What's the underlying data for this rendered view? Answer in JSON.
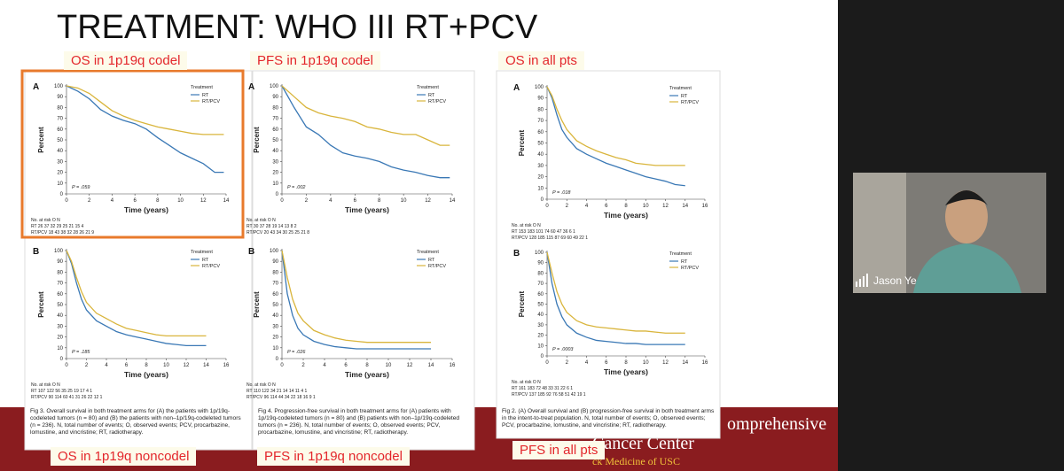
{
  "slide": {
    "title": "TREATMENT: WHO III RT+PCV",
    "labels": [
      "OS in 1p19q codel",
      "PFS in 1p19q codel",
      "OS in all pts",
      "OS in 1p19q noncodel",
      "PFS in 1p19q noncodel",
      "PFS in all pts"
    ],
    "captions": [
      "Fig 3. Overall survival in both treatment arms for (A) the patients with 1p/19q-codeleted tumors (n = 80) and (B) the patients with non–1p/19q-codeleted tumors (n = 236). N, total number of events; O, observed events; PCV, procarbazine, lomustine, and vincristine; RT, radiotherapy.",
      "Fig 4. Progression-free survival in both treatment arms for (A) patients with 1p/19q-codeleted tumors (n = 80) and (B) patients with non–1p/19q-codeleted tumors (n = 236). N, total number of events; O, observed events; PCV, procarbazine, lomustine, and vincristine; RT, radiotherapy.",
      "Fig 2. (A) Overall survival and (B) progression-free survival in both treatment arms in the intent-to-treat population. N, total number of events; O, observed events; PCV, procarbazine, lomustine, and vincristine; RT, radiotherapy."
    ],
    "footer": [
      "omprehensive",
      "Cancer Center",
      "ck Medicine of USC"
    ]
  },
  "video": {
    "participant": "Jason Ye"
  },
  "chart_data": [
    {
      "type": "line",
      "panel": "A",
      "ylabel": "Percent",
      "xlabel": "Time (years)",
      "legend_title": "Treatment",
      "x": [
        0,
        1,
        2,
        3,
        4,
        5,
        6,
        7,
        8,
        9,
        10,
        11,
        12,
        13,
        13.8
      ],
      "xlim": [
        0,
        14
      ],
      "xticks": [
        0,
        2,
        4,
        6,
        8,
        10,
        12,
        14
      ],
      "ylim": [
        0,
        100
      ],
      "yticks": [
        0,
        10,
        20,
        30,
        40,
        50,
        60,
        70,
        80,
        90,
        100
      ],
      "series": [
        {
          "name": "RT",
          "color": "#3a78b5",
          "values": [
            100,
            95,
            88,
            78,
            72,
            68,
            65,
            60,
            52,
            45,
            38,
            33,
            28,
            20,
            20
          ]
        },
        {
          "name": "RT/PCV",
          "color": "#d9b53c",
          "values": [
            100,
            98,
            93,
            85,
            77,
            72,
            68,
            65,
            62,
            60,
            58,
            56,
            55,
            55,
            55
          ]
        }
      ],
      "annotation": "P = .059",
      "risk_table": {
        "header": "No. at risk   O   N",
        "rows": [
          "RT   26  37    32    29    25    21    15    4",
          "RT/PCV  18  43    38    32    28    26    21    9"
        ]
      }
    },
    {
      "type": "line",
      "panel": "A",
      "ylabel": "Percent",
      "xlabel": "Time (years)",
      "legend_title": "Treatment",
      "x": [
        0,
        1,
        2,
        3,
        4,
        5,
        6,
        7,
        8,
        9,
        10,
        11,
        12,
        13,
        13.8
      ],
      "xlim": [
        0,
        14
      ],
      "xticks": [
        0,
        2,
        4,
        6,
        8,
        10,
        12,
        14
      ],
      "ylim": [
        0,
        100
      ],
      "yticks": [
        0,
        10,
        20,
        30,
        40,
        50,
        60,
        70,
        80,
        90,
        100
      ],
      "series": [
        {
          "name": "RT",
          "color": "#3a78b5",
          "values": [
            100,
            80,
            62,
            55,
            45,
            38,
            35,
            33,
            30,
            25,
            22,
            20,
            17,
            15,
            15
          ]
        },
        {
          "name": "RT/PCV",
          "color": "#d9b53c",
          "values": [
            100,
            90,
            80,
            75,
            72,
            70,
            67,
            62,
            60,
            57,
            55,
            55,
            50,
            45,
            45
          ]
        }
      ],
      "annotation": "P = .002",
      "risk_table": {
        "header": "No. at risk   O   N",
        "rows": [
          "RT   30  37    28    19    14    13    8    2",
          "RT/PCV  20  43    34    30    25    25    21    8"
        ]
      }
    },
    {
      "type": "line",
      "panel": "A",
      "ylabel": "Percent",
      "xlabel": "Time (years)",
      "legend_title": "Treatment",
      "x": [
        0,
        0.5,
        1,
        1.5,
        2,
        3,
        4,
        5,
        6,
        7,
        8,
        9,
        10,
        11,
        12,
        13,
        14
      ],
      "xlim": [
        0,
        16
      ],
      "xticks": [
        0,
        2,
        4,
        6,
        8,
        10,
        12,
        14,
        16
      ],
      "ylim": [
        0,
        100
      ],
      "yticks": [
        0,
        10,
        20,
        30,
        40,
        50,
        60,
        70,
        80,
        90,
        100
      ],
      "series": [
        {
          "name": "RT",
          "color": "#3a78b5",
          "values": [
            100,
            90,
            75,
            62,
            55,
            45,
            40,
            36,
            32,
            29,
            26,
            23,
            20,
            18,
            16,
            13,
            12
          ]
        },
        {
          "name": "RT/PCV",
          "color": "#d9b53c",
          "values": [
            100,
            92,
            80,
            70,
            62,
            52,
            47,
            43,
            40,
            37,
            35,
            32,
            31,
            30,
            30,
            30,
            30
          ]
        }
      ],
      "annotation": "P = .018",
      "risk_table": {
        "header": "No. at risk   O   N",
        "rows": [
          "RT   153 183   101   74   60   47   36   6   1",
          "RT/PCV 128 185   115   87   69   60   49   22   1"
        ]
      }
    },
    {
      "type": "line",
      "panel": "B",
      "ylabel": "Percent",
      "xlabel": "Time (years)",
      "legend_title": "Treatment",
      "x": [
        0,
        0.5,
        1,
        1.5,
        2,
        3,
        4,
        5,
        6,
        7,
        8,
        9,
        10,
        11,
        12,
        13,
        14
      ],
      "xlim": [
        0,
        16
      ],
      "xticks": [
        0,
        2,
        4,
        6,
        8,
        10,
        12,
        14,
        16
      ],
      "ylim": [
        0,
        100
      ],
      "yticks": [
        0,
        10,
        20,
        30,
        40,
        50,
        60,
        70,
        80,
        90,
        100
      ],
      "series": [
        {
          "name": "RT",
          "color": "#3a78b5",
          "values": [
            100,
            88,
            70,
            55,
            45,
            35,
            30,
            25,
            22,
            20,
            18,
            16,
            14,
            13,
            12,
            12,
            12
          ]
        },
        {
          "name": "RT/PCV",
          "color": "#d9b53c",
          "values": [
            100,
            90,
            75,
            62,
            52,
            42,
            37,
            32,
            28,
            26,
            24,
            22,
            21,
            21,
            21,
            21,
            21
          ]
        }
      ],
      "annotation": "P = .185",
      "risk_table": {
        "header": "No. at risk   O   N",
        "rows": [
          "RT   107 122   56   35   25   19   17   4   1",
          "RT/PCV  90 114   60   41   31   26   22   12   1"
        ]
      }
    },
    {
      "type": "line",
      "panel": "B",
      "ylabel": "Percent",
      "xlabel": "Time (years)",
      "legend_title": "Treatment",
      "x": [
        0,
        0.5,
        1,
        1.5,
        2,
        3,
        4,
        5,
        6,
        7,
        8,
        9,
        10,
        11,
        12,
        13,
        14
      ],
      "xlim": [
        0,
        16
      ],
      "xticks": [
        0,
        2,
        4,
        6,
        8,
        10,
        12,
        14,
        16
      ],
      "ylim": [
        0,
        100
      ],
      "yticks": [
        0,
        10,
        20,
        30,
        40,
        50,
        60,
        70,
        80,
        90,
        100
      ],
      "series": [
        {
          "name": "RT",
          "color": "#3a78b5",
          "values": [
            100,
            60,
            40,
            28,
            22,
            16,
            13,
            11,
            10,
            9,
            9,
            9,
            9,
            9,
            9,
            9,
            9
          ]
        },
        {
          "name": "RT/PCV",
          "color": "#d9b53c",
          "values": [
            100,
            75,
            55,
            42,
            35,
            26,
            22,
            19,
            17,
            16,
            15,
            15,
            15,
            15,
            15,
            15,
            15
          ]
        }
      ],
      "annotation": "P = .026",
      "risk_table": {
        "header": "No. at risk   O   N",
        "rows": [
          "RT   110 122   34   21   14   14   11   4   1",
          "RT/PCV  96 114   44   34   22   18   16   9   1"
        ]
      }
    },
    {
      "type": "line",
      "panel": "B",
      "ylabel": "Percent",
      "xlabel": "Time (years)",
      "legend_title": "Treatment",
      "x": [
        0,
        0.5,
        1,
        1.5,
        2,
        3,
        4,
        5,
        6,
        7,
        8,
        9,
        10,
        11,
        12,
        13,
        14
      ],
      "xlim": [
        0,
        16
      ],
      "xticks": [
        0,
        2,
        4,
        6,
        8,
        10,
        12,
        14,
        16
      ],
      "ylim": [
        0,
        100
      ],
      "yticks": [
        0,
        10,
        20,
        30,
        40,
        50,
        60,
        70,
        80,
        90,
        100
      ],
      "series": [
        {
          "name": "RT",
          "color": "#3a78b5",
          "values": [
            100,
            70,
            50,
            38,
            30,
            22,
            18,
            15,
            14,
            13,
            12,
            12,
            11,
            11,
            11,
            11,
            11
          ]
        },
        {
          "name": "RT/PCV",
          "color": "#d9b53c",
          "values": [
            100,
            80,
            62,
            50,
            42,
            34,
            30,
            28,
            27,
            26,
            25,
            24,
            24,
            23,
            22,
            22,
            22
          ]
        }
      ],
      "annotation": "P = .0003",
      "risk_table": {
        "header": "No. at risk   O   N",
        "rows": [
          "RT   161 183   72   48   33   31   22   6   1",
          "RT/PCV 137 185   92   76   58   51   42   19   1"
        ]
      }
    }
  ]
}
